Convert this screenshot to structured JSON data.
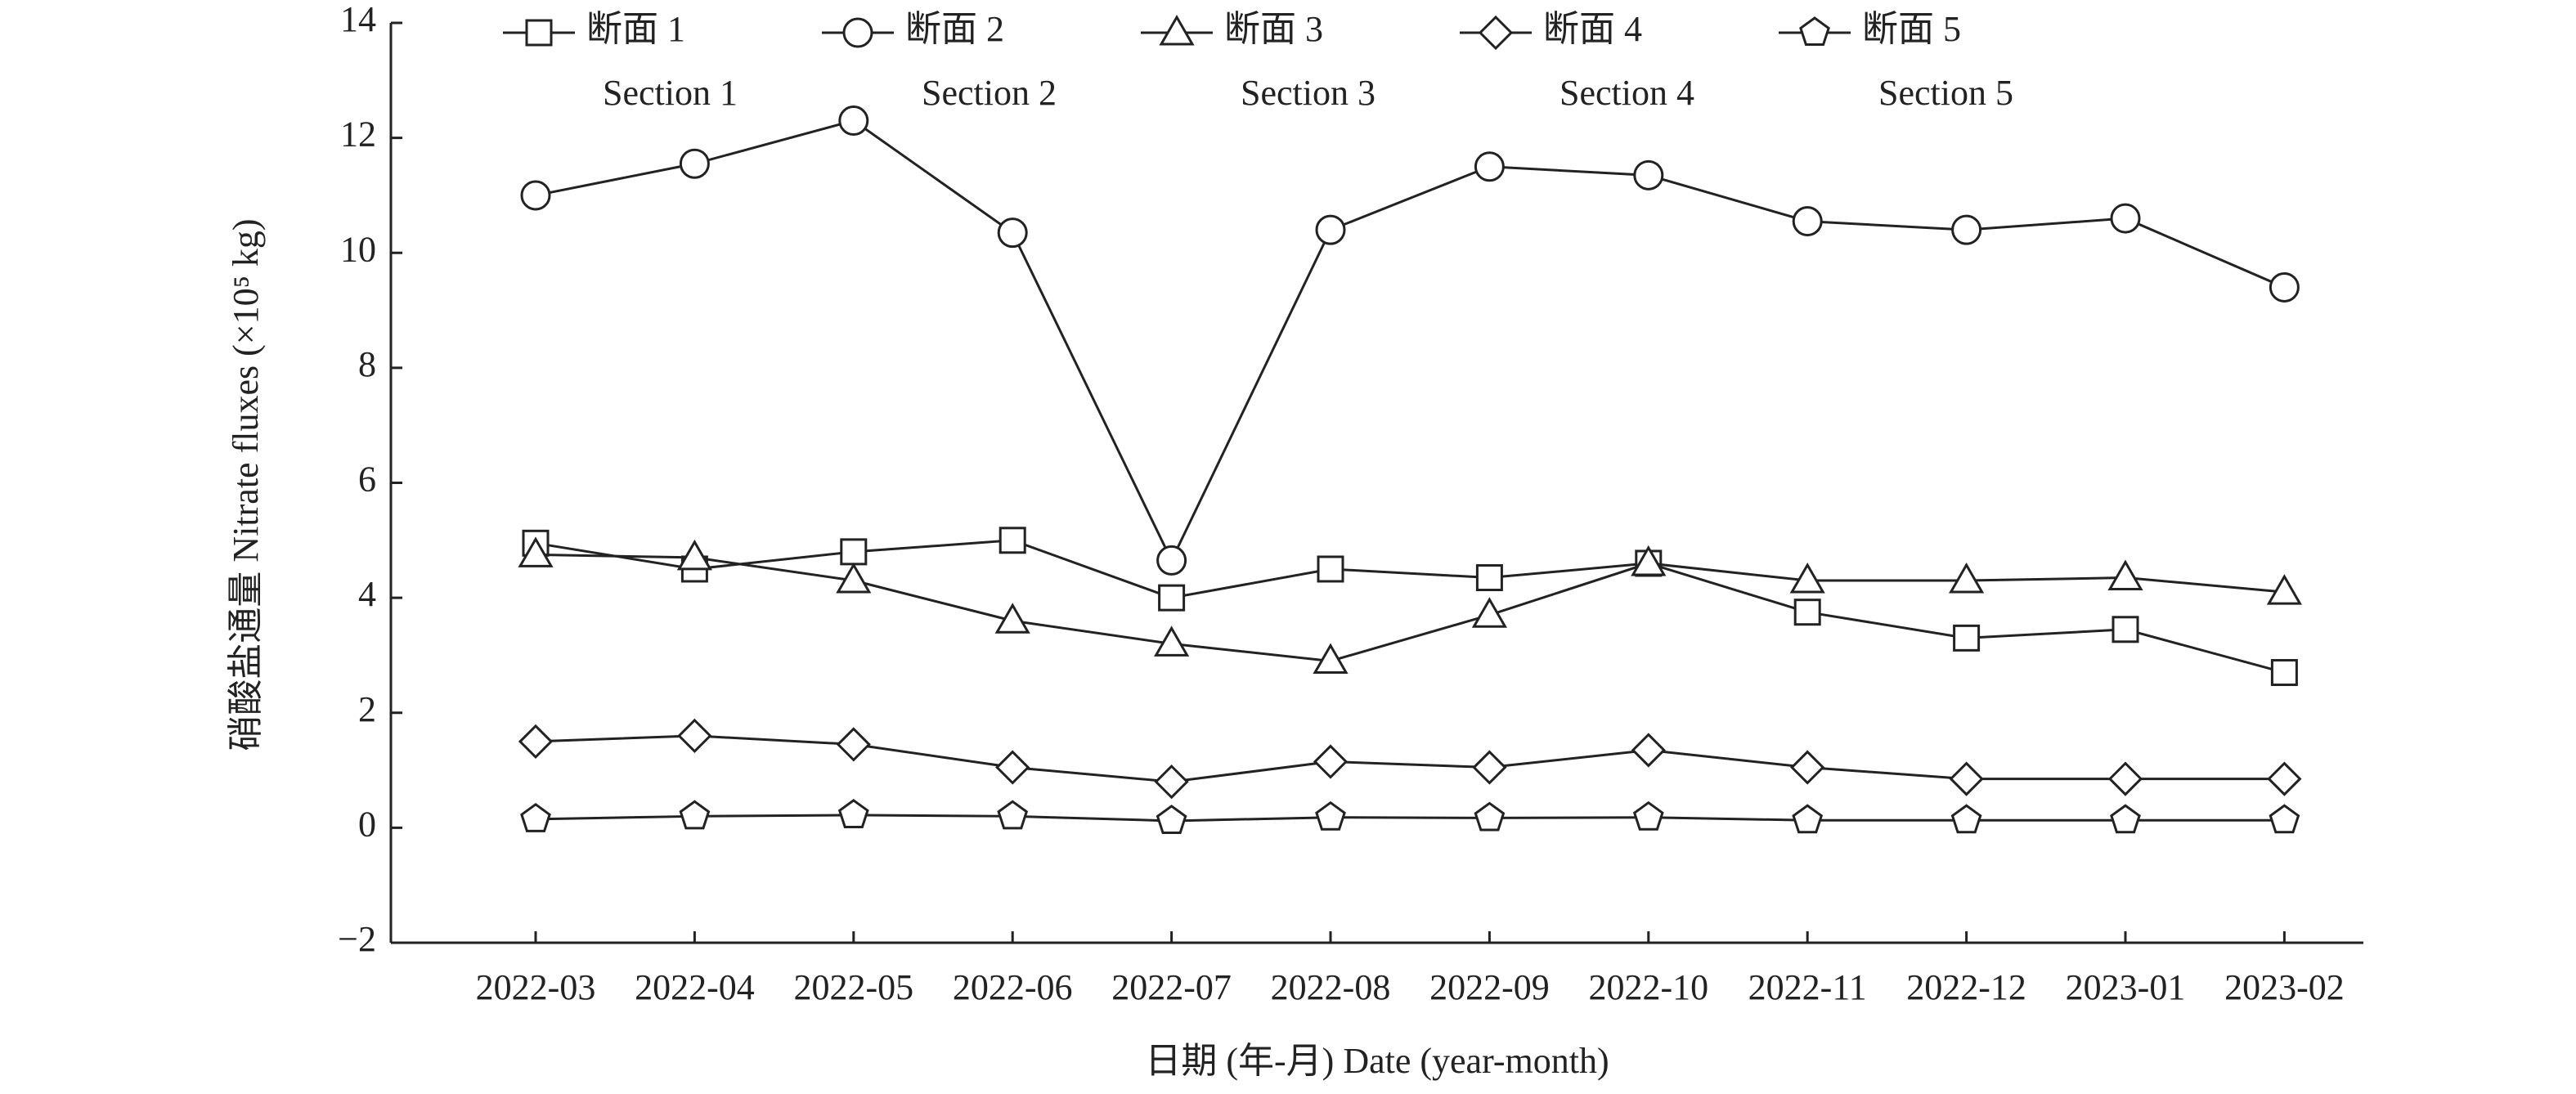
{
  "chart_data": {
    "type": "line",
    "y_label": "硝酸盐通量 Nitrate fluxes (×10⁵ kg)",
    "x_label": "日期 (年-月) Date (year-month)",
    "categories": [
      "2022-03",
      "2022-04",
      "2022-05",
      "2022-06",
      "2022-07",
      "2022-08",
      "2022-09",
      "2022-10",
      "2022-11",
      "2022-12",
      "2023-01",
      "2023-02"
    ],
    "ylim": [
      -2,
      14
    ],
    "yticks": [
      {
        "value": -2,
        "label": "−2"
      },
      0,
      2,
      4,
      6,
      8,
      10,
      12,
      14
    ],
    "grid": false,
    "series": [
      {
        "name": "断面 1",
        "name_en": "Section 1",
        "color": "#222222",
        "marker": "square",
        "values": [
          4.95,
          4.5,
          4.8,
          5.0,
          4.0,
          4.5,
          4.35,
          4.6,
          3.75,
          3.3,
          3.45,
          2.7
        ]
      },
      {
        "name": "断面 2",
        "name_en": "Section 2",
        "color": "#222222",
        "marker": "circle",
        "values": [
          11.0,
          11.55,
          12.3,
          10.35,
          4.65,
          10.4,
          11.5,
          11.35,
          10.55,
          10.4,
          10.6,
          9.4
        ]
      },
      {
        "name": "断面 3",
        "name_en": "Section 3",
        "color": "#222222",
        "marker": "triangle",
        "values": [
          4.75,
          4.7,
          4.3,
          3.6,
          3.2,
          2.9,
          3.7,
          4.6,
          4.3,
          4.3,
          4.35,
          4.1
        ]
      },
      {
        "name": "断面 4",
        "name_en": "Section 4",
        "color": "#222222",
        "marker": "diamond",
        "values": [
          1.5,
          1.6,
          1.45,
          1.05,
          0.8,
          1.15,
          1.05,
          1.35,
          1.05,
          0.85,
          0.85,
          0.85
        ]
      },
      {
        "name": "断面 5",
        "name_en": "Section 5",
        "color": "#222222",
        "marker": "pentagon",
        "values": [
          0.15,
          0.2,
          0.22,
          0.2,
          0.12,
          0.18,
          0.17,
          0.18,
          0.13,
          0.13,
          0.13,
          0.13
        ]
      }
    ]
  }
}
